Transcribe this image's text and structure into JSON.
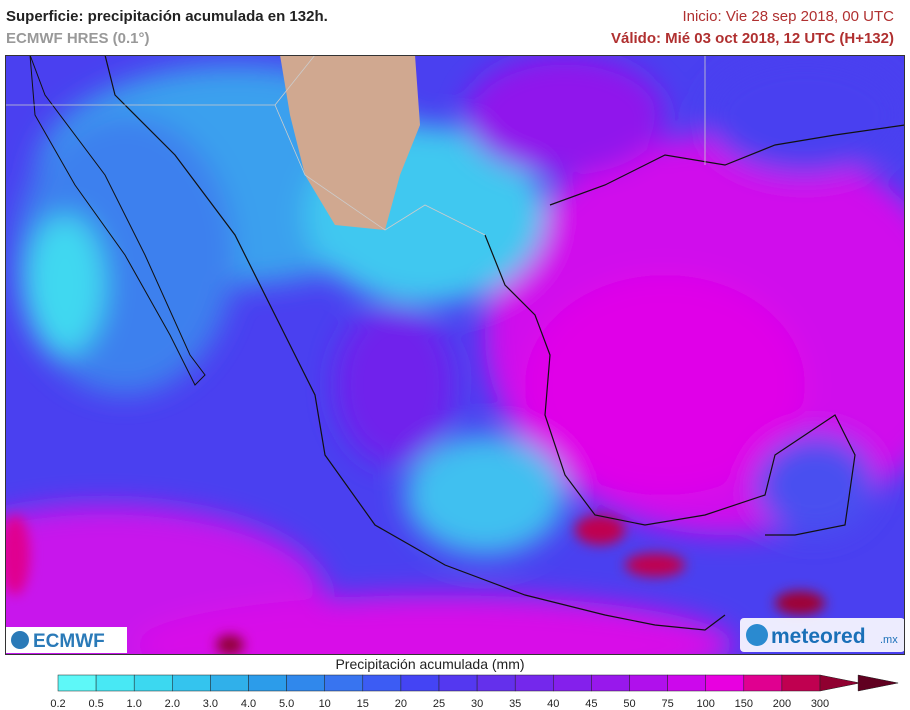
{
  "header": {
    "title": "Superficie: precipitación acumulada en 132h.",
    "model": "ECMWF HRES (0.1°)",
    "init": "Inicio: Vie 28 sep 2018, 00 UTC",
    "valid": "Válido: Mié 03 oct 2018, 12 UTC (H+132)"
  },
  "logos": {
    "left": "ECMWF",
    "right": "meteored",
    "right_suffix": ".mx"
  },
  "legend": {
    "title": "Precipitación acumulada (mm)",
    "ticks": [
      "0.2",
      "0.5",
      "1.0",
      "2.0",
      "3.0",
      "4.0",
      "5.0",
      "10",
      "15",
      "20",
      "25",
      "30",
      "35",
      "40",
      "45",
      "50",
      "75",
      "100",
      "150",
      "200",
      "300"
    ],
    "colors": [
      "#5ef8f8",
      "#48e8f4",
      "#3cd8f0",
      "#34c4ee",
      "#30b0ea",
      "#2c9cea",
      "#3088ec",
      "#3874f0",
      "#3c5cf4",
      "#4444f4",
      "#5438f0",
      "#6430ec",
      "#7428ec",
      "#8420ec",
      "#9818ec",
      "#b010ec",
      "#cc08ec",
      "#e800e0",
      "#e00090",
      "#c00050",
      "#900030",
      "#600020"
    ]
  }
}
